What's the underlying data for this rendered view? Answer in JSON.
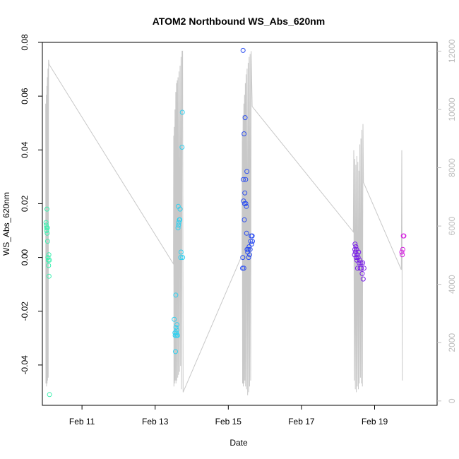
{
  "chart_data": {
    "type": "scatter",
    "title": "ATOM2 Northbound WS_Abs_620nm",
    "xlabel": "Date",
    "ylabel": "WS_Abs_620nm",
    "xlim": [
      "2023-02-09 22:00",
      "2023-02-20 17:00"
    ],
    "ylim": [
      -0.055,
      0.08
    ],
    "y2lim": [
      -150,
      12300
    ],
    "y2_color": "#bdbdbd",
    "x_ticks": [
      {
        "date": "2023-02-11",
        "label": "Feb 11"
      },
      {
        "date": "2023-02-13",
        "label": "Feb 13"
      },
      {
        "date": "2023-02-15",
        "label": "Feb 15"
      },
      {
        "date": "2023-02-17",
        "label": "Feb 17"
      },
      {
        "date": "2023-02-19",
        "label": "Feb 19"
      }
    ],
    "y_ticks": [
      {
        "value": -0.04,
        "label": "-0.04"
      },
      {
        "value": -0.02,
        "label": "-0.02"
      },
      {
        "value": 0.0,
        "label": "0.00"
      },
      {
        "value": 0.02,
        "label": "0.02"
      },
      {
        "value": 0.04,
        "label": "0.04"
      },
      {
        "value": 0.06,
        "label": "0.06"
      },
      {
        "value": 0.08,
        "label": "0.08"
      }
    ],
    "y2_ticks": [
      {
        "value": 0,
        "label": "0"
      },
      {
        "value": 2000,
        "label": "2000"
      },
      {
        "value": 4000,
        "label": "4000"
      },
      {
        "value": 6000,
        "label": "6000"
      },
      {
        "value": 8000,
        "label": "8000"
      },
      {
        "value": 10000,
        "label": "10000"
      },
      {
        "value": 12000,
        "label": "12000"
      }
    ],
    "series": [
      {
        "color": "#3df0b0",
        "points": [
          [
            "2023-02-10 00:25",
            0.013
          ],
          [
            "2023-02-10 00:30",
            0.012
          ],
          [
            "2023-02-10 00:45",
            0.011
          ],
          [
            "2023-02-10 00:50",
            0.01
          ],
          [
            "2023-02-10 01:00",
            0.018
          ],
          [
            "2023-02-10 01:10",
            0.009
          ],
          [
            "2023-02-10 01:20",
            0.011
          ],
          [
            "2023-02-10 01:25",
            0.006
          ],
          [
            "2023-02-10 01:40",
            0.0
          ],
          [
            "2023-02-10 01:50",
            -0.001
          ],
          [
            "2023-02-10 02:05",
            -0.003
          ],
          [
            "2023-02-10 02:15",
            0.001
          ],
          [
            "2023-02-10 02:20",
            -0.007
          ],
          [
            "2023-02-10 02:35",
            -0.001
          ],
          [
            "2023-02-10 02:40",
            -0.051
          ]
        ]
      },
      {
        "color": "#2fd0f0",
        "points": [
          [
            "2023-02-13 12:30",
            -0.023
          ],
          [
            "2023-02-13 13:00",
            -0.028
          ],
          [
            "2023-02-13 13:10",
            -0.029
          ],
          [
            "2023-02-13 13:20",
            -0.035
          ],
          [
            "2023-02-13 13:30",
            -0.014
          ],
          [
            "2023-02-13 13:40",
            -0.026
          ],
          [
            "2023-02-13 13:50",
            -0.028
          ],
          [
            "2023-02-13 14:00",
            -0.029
          ],
          [
            "2023-02-13 14:10",
            -0.027
          ],
          [
            "2023-02-13 14:20",
            -0.025
          ],
          [
            "2023-02-13 14:40",
            -0.029
          ],
          [
            "2023-02-13 15:00",
            0.011
          ],
          [
            "2023-02-13 15:10",
            0.019
          ],
          [
            "2023-02-13 15:20",
            0.012
          ],
          [
            "2023-02-13 15:30",
            0.013
          ],
          [
            "2023-02-13 15:50",
            0.014
          ],
          [
            "2023-02-13 16:10",
            0.014
          ],
          [
            "2023-02-13 16:20",
            0.018
          ],
          [
            "2023-02-13 16:50",
            0.0
          ],
          [
            "2023-02-13 17:00",
            0.002
          ],
          [
            "2023-02-13 17:40",
            0.041
          ],
          [
            "2023-02-13 17:50",
            0.054
          ],
          [
            "2023-02-13 18:00",
            0.0
          ]
        ]
      },
      {
        "color": "#2c4ef0",
        "points": [
          [
            "2023-02-15 09:20",
            -0.004
          ],
          [
            "2023-02-15 09:30",
            0.0
          ],
          [
            "2023-02-15 09:40",
            0.077
          ],
          [
            "2023-02-15 09:50",
            0.029
          ],
          [
            "2023-02-15 10:00",
            0.021
          ],
          [
            "2023-02-15 10:10",
            -0.004
          ],
          [
            "2023-02-15 10:20",
            0.046
          ],
          [
            "2023-02-15 10:30",
            0.014
          ],
          [
            "2023-02-15 10:40",
            0.02
          ],
          [
            "2023-02-15 10:50",
            0.024
          ],
          [
            "2023-02-15 11:00",
            0.052
          ],
          [
            "2023-02-15 11:20",
            0.029
          ],
          [
            "2023-02-15 11:30",
            0.02
          ],
          [
            "2023-02-15 11:50",
            0.019
          ],
          [
            "2023-02-15 12:00",
            0.009
          ],
          [
            "2023-02-15 12:10",
            0.032
          ],
          [
            "2023-02-15 12:20",
            0.003
          ],
          [
            "2023-02-15 12:40",
            0.002
          ],
          [
            "2023-02-15 13:00",
            0.003
          ],
          [
            "2023-02-15 13:20",
            0.0
          ],
          [
            "2023-02-15 13:40",
            0.004
          ],
          [
            "2023-02-15 14:00",
            0.001
          ],
          [
            "2023-02-15 14:20",
            0.003
          ],
          [
            "2023-02-15 14:40",
            0.006
          ],
          [
            "2023-02-15 15:00",
            0.008
          ],
          [
            "2023-02-15 15:20",
            0.005
          ],
          [
            "2023-02-15 15:40",
            0.008
          ],
          [
            "2023-02-15 15:50",
            0.006
          ]
        ]
      },
      {
        "color": "#7a1fe8",
        "points": [
          [
            "2023-02-18 10:50",
            0.001
          ],
          [
            "2023-02-18 11:00",
            0.003
          ],
          [
            "2023-02-18 11:10",
            0.005
          ],
          [
            "2023-02-18 11:20",
            0.002
          ],
          [
            "2023-02-18 11:40",
            0.004
          ],
          [
            "2023-02-18 11:50",
            0.0
          ],
          [
            "2023-02-18 12:10",
            0.003
          ],
          [
            "2023-02-18 12:20",
            -0.001
          ],
          [
            "2023-02-18 12:40",
            0.001
          ],
          [
            "2023-02-18 12:50",
            -0.004
          ],
          [
            "2023-02-18 13:10",
            0.0
          ],
          [
            "2023-02-18 13:30",
            0.002
          ],
          [
            "2023-02-18 13:50",
            -0.002
          ],
          [
            "2023-02-18 14:10",
            -0.001
          ],
          [
            "2023-02-18 14:30",
            -0.004
          ],
          [
            "2023-02-18 15:00",
            -0.002
          ],
          [
            "2023-02-18 15:20",
            -0.004
          ],
          [
            "2023-02-18 15:50",
            -0.006
          ],
          [
            "2023-02-18 16:10",
            -0.002
          ],
          [
            "2023-02-18 16:30",
            -0.008
          ],
          [
            "2023-02-18 17:00",
            -0.004
          ]
        ]
      },
      {
        "color": "#d41ee0",
        "points": [
          [
            "2023-02-19 17:50",
            0.002
          ],
          [
            "2023-02-19 18:10",
            0.001
          ],
          [
            "2023-02-19 18:30",
            0.003
          ],
          [
            "2023-02-19 18:50",
            0.008
          ],
          [
            "2023-02-19 19:10",
            0.008
          ]
        ]
      }
    ],
    "secondary_line": {
      "color": "#c8c8c8",
      "points": [
        [
          "2023-02-10 00:10",
          10200
        ],
        [
          "2023-02-10 00:20",
          600
        ],
        [
          "2023-02-10 00:35",
          10500
        ],
        [
          "2023-02-10 00:45",
          500
        ],
        [
          "2023-02-10 00:55",
          10800
        ],
        [
          "2023-02-10 01:05",
          600
        ],
        [
          "2023-02-10 01:15",
          11100
        ],
        [
          "2023-02-10 01:25",
          700
        ],
        [
          "2023-02-10 01:40",
          11400
        ],
        [
          "2023-02-10 01:50",
          800
        ],
        [
          "2023-02-10 02:05",
          11700
        ],
        [
          "2023-02-10 02:20",
          11550
        ],
        [
          "2023-02-13 12:00",
          4700
        ],
        [
          "2023-02-13 12:10",
          9100
        ],
        [
          "2023-02-13 12:20",
          500
        ],
        [
          "2023-02-13 12:30",
          9400
        ],
        [
          "2023-02-13 12:40",
          600
        ],
        [
          "2023-02-13 13:00",
          10000
        ],
        [
          "2023-02-13 13:10",
          700
        ],
        [
          "2023-02-13 13:30",
          10600
        ],
        [
          "2023-02-13 13:40",
          600
        ],
        [
          "2023-02-13 14:00",
          10900
        ],
        [
          "2023-02-13 14:10",
          700
        ],
        [
          "2023-02-13 14:30",
          11000
        ],
        [
          "2023-02-13 14:50",
          800
        ],
        [
          "2023-02-13 15:00",
          11100
        ],
        [
          "2023-02-13 15:20",
          900
        ],
        [
          "2023-02-13 15:40",
          11300
        ],
        [
          "2023-02-13 16:00",
          1000
        ],
        [
          "2023-02-13 16:20",
          11500
        ],
        [
          "2023-02-13 16:40",
          1200
        ],
        [
          "2023-02-13 17:00",
          11800
        ],
        [
          "2023-02-13 17:20",
          400
        ],
        [
          "2023-02-13 17:40",
          12000
        ],
        [
          "2023-02-13 18:00",
          12000
        ],
        [
          "2023-02-13 18:20",
          300
        ],
        [
          "2023-02-15 09:00",
          5000
        ],
        [
          "2023-02-15 09:10",
          9200
        ],
        [
          "2023-02-15 09:20",
          600
        ],
        [
          "2023-02-15 09:40",
          9800
        ],
        [
          "2023-02-15 09:50",
          500
        ],
        [
          "2023-02-15 10:10",
          10200
        ],
        [
          "2023-02-15 10:20",
          600
        ],
        [
          "2023-02-15 10:40",
          10500
        ],
        [
          "2023-02-15 10:50",
          700
        ],
        [
          "2023-02-15 11:10",
          10900
        ],
        [
          "2023-02-15 11:20",
          500
        ],
        [
          "2023-02-15 11:40",
          11200
        ],
        [
          "2023-02-15 12:00",
          400
        ],
        [
          "2023-02-15 12:20",
          11400
        ],
        [
          "2023-02-15 12:40",
          200
        ],
        [
          "2023-02-15 13:00",
          11600
        ],
        [
          "2023-02-15 13:20",
          300
        ],
        [
          "2023-02-15 13:40",
          11800
        ],
        [
          "2023-02-15 14:00",
          500
        ],
        [
          "2023-02-15 14:20",
          11900
        ],
        [
          "2023-02-15 14:40",
          700
        ],
        [
          "2023-02-15 15:00",
          12000
        ],
        [
          "2023-02-15 15:40",
          10100
        ],
        [
          "2023-02-18 10:00",
          5800
        ],
        [
          "2023-02-18 10:20",
          8600
        ],
        [
          "2023-02-18 10:40",
          700
        ],
        [
          "2023-02-18 11:00",
          8300
        ],
        [
          "2023-02-18 11:20",
          400
        ],
        [
          "2023-02-18 11:40",
          8100
        ],
        [
          "2023-02-18 12:00",
          300
        ],
        [
          "2023-02-18 12:20",
          8400
        ],
        [
          "2023-02-18 12:40",
          500
        ],
        [
          "2023-02-18 13:00",
          8200
        ],
        [
          "2023-02-18 13:20",
          400
        ],
        [
          "2023-02-18 13:40",
          7900
        ],
        [
          "2023-02-18 14:00",
          600
        ],
        [
          "2023-02-18 14:20",
          8800
        ],
        [
          "2023-02-18 14:40",
          800
        ],
        [
          "2023-02-18 15:00",
          9000
        ],
        [
          "2023-02-18 15:20",
          600
        ],
        [
          "2023-02-18 15:40",
          9300
        ],
        [
          "2023-02-18 16:00",
          500
        ],
        [
          "2023-02-18 16:20",
          9500
        ],
        [
          "2023-02-18 16:40",
          7500
        ],
        [
          "2023-02-19 17:30",
          4500
        ],
        [
          "2023-02-19 17:50",
          8600
        ],
        [
          "2023-02-19 18:10",
          700
        ]
      ]
    },
    "grid": false,
    "legend": "none"
  }
}
